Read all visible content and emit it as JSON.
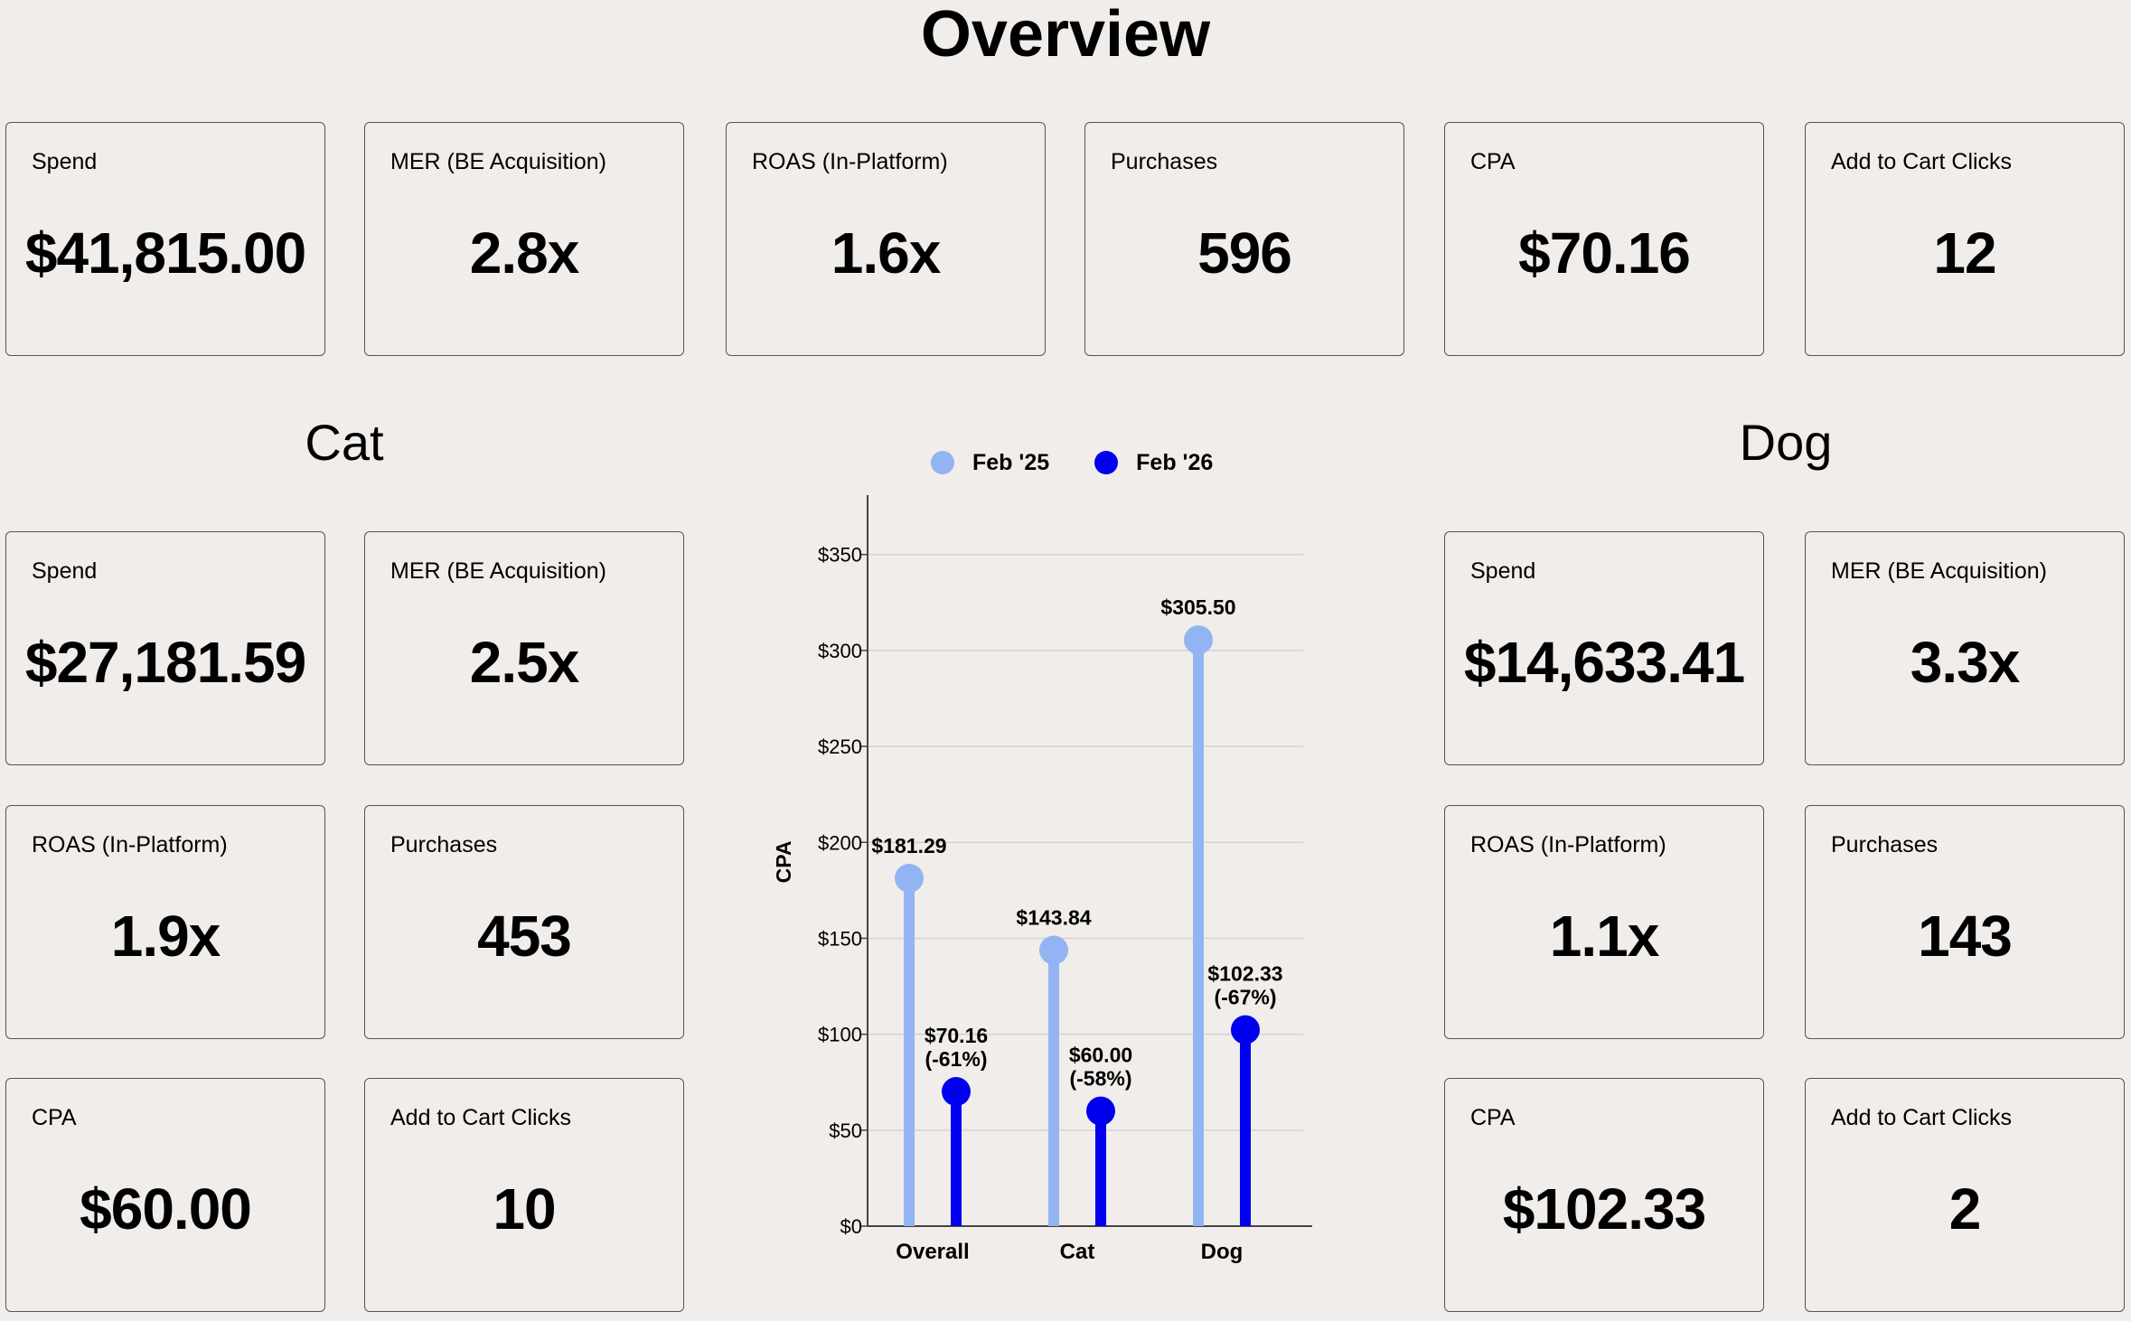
{
  "title": "Overview",
  "overview": {
    "cards": [
      {
        "label": "Spend",
        "value": "$41,815.00"
      },
      {
        "label": "MER (BE Acquisition)",
        "value": "2.8x"
      },
      {
        "label": "ROAS (In-Platform)",
        "value": "1.6x"
      },
      {
        "label": "Purchases",
        "value": "596"
      },
      {
        "label": "CPA",
        "value": "$70.16"
      },
      {
        "label": "Add to Cart Clicks",
        "value": "12"
      }
    ]
  },
  "cat": {
    "title": "Cat",
    "cards": [
      {
        "label": "Spend",
        "value": "$27,181.59"
      },
      {
        "label": "MER (BE Acquisition)",
        "value": "2.5x"
      },
      {
        "label": "ROAS (In-Platform)",
        "value": "1.9x"
      },
      {
        "label": "Purchases",
        "value": "453"
      },
      {
        "label": "CPA",
        "value": "$60.00"
      },
      {
        "label": "Add to Cart Clicks",
        "value": "10"
      }
    ]
  },
  "dog": {
    "title": "Dog",
    "cards": [
      {
        "label": "Spend",
        "value": "$14,633.41"
      },
      {
        "label": "MER (BE Acquisition)",
        "value": "3.3x"
      },
      {
        "label": "ROAS (In-Platform)",
        "value": "1.1x"
      },
      {
        "label": "Purchases",
        "value": "143"
      },
      {
        "label": "CPA",
        "value": "$102.33"
      },
      {
        "label": "Add to Cart Clicks",
        "value": "2"
      }
    ]
  },
  "colors": {
    "feb25": "#93b4f2",
    "feb26": "#0000ee",
    "grid": "#d6d3cf",
    "axis": "#444444"
  },
  "chart_data": {
    "type": "lollipop",
    "ylabel": "CPA",
    "xlabel": "",
    "categories": [
      "Overall",
      "Cat",
      "Dog"
    ],
    "ylim": [
      0,
      380
    ],
    "yticks": [
      0,
      50,
      100,
      150,
      200,
      250,
      300,
      350
    ],
    "ytick_labels": [
      "$0",
      "$50",
      "$100",
      "$150",
      "$200",
      "$250",
      "$300",
      "$350"
    ],
    "grid": true,
    "legend_position": "top-center",
    "series": [
      {
        "name": "Feb '25",
        "values": [
          181.29,
          143.84,
          305.5
        ],
        "labels": [
          [
            "$181.29"
          ],
          [
            "$143.84"
          ],
          [
            "$305.50"
          ]
        ]
      },
      {
        "name": "Feb '26",
        "values": [
          70.16,
          60.0,
          102.33
        ],
        "labels": [
          [
            "$70.16",
            "(-61%)"
          ],
          [
            "$60.00",
            "(-58%)"
          ],
          [
            "$102.33",
            "(-67%)"
          ]
        ]
      }
    ]
  }
}
